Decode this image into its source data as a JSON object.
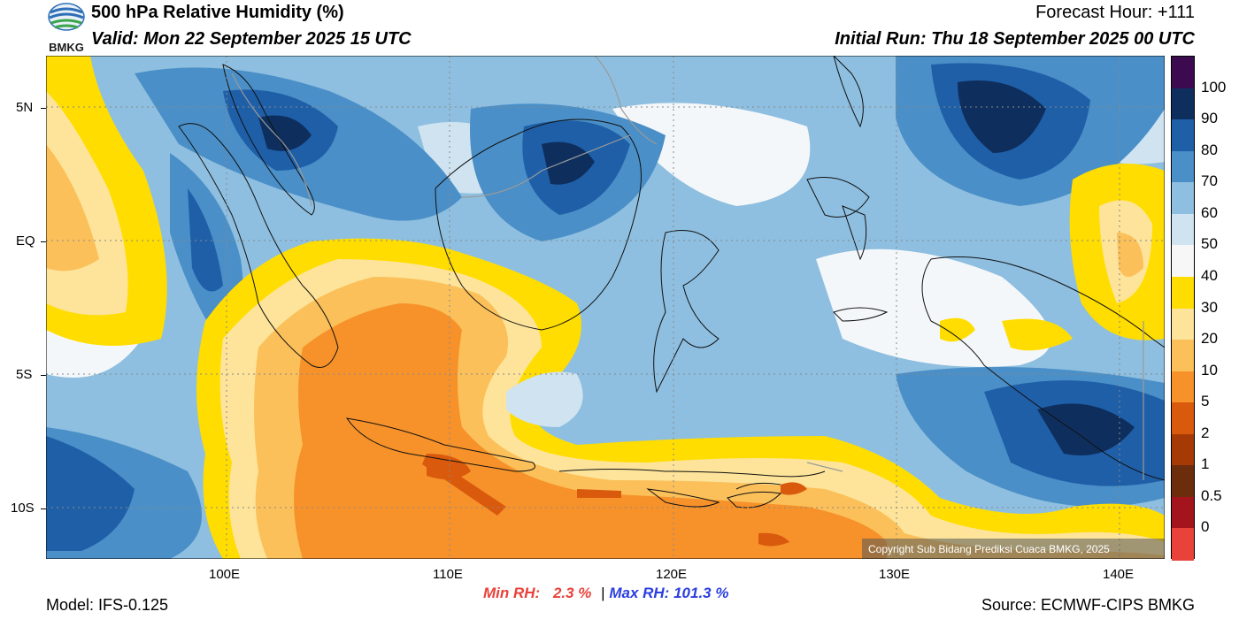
{
  "header": {
    "logo_text": "BMKG",
    "title": "500 hPa Relative Humidity (%)",
    "valid": "Valid: Mon 22 September 2025 15 UTC",
    "forecast_hour": "Forecast Hour: +111",
    "initial_run": "Initial Run: Thu 18 September 2025 00 UTC"
  },
  "map": {
    "lat_labels": [
      "5N",
      "EQ",
      "5S",
      "10S"
    ],
    "lon_labels": [
      "100E",
      "110E",
      "120E",
      "130E",
      "140E"
    ],
    "copyright": "Copyright Sub Bidang Prediksi Cuaca BMKG, 2025"
  },
  "colorbar": {
    "labels": [
      "100",
      "90",
      "80",
      "70",
      "60",
      "50",
      "40",
      "30",
      "20",
      "10",
      "5",
      "2",
      "1",
      "0.5",
      "0"
    ],
    "colors": [
      "#3b0a4f",
      "#0e2f5e",
      "#1f5fa8",
      "#4a8fc7",
      "#8ebfe0",
      "#cfe3f0",
      "#f7f7f7",
      "#ffdd00",
      "#fde49a",
      "#fbc05a",
      "#f7922a",
      "#d95a0d",
      "#a63a06",
      "#6b2d0c",
      "#a3141c",
      "#e8423a"
    ]
  },
  "footer": {
    "model": "Model: IFS-0.125",
    "min_label": "Min RH:",
    "min_value": "2.3 %",
    "separator": "|",
    "max_label": "Max RH:",
    "max_value": "101.3 %",
    "source": "Source: ECMWF-CIPS BMKG"
  }
}
